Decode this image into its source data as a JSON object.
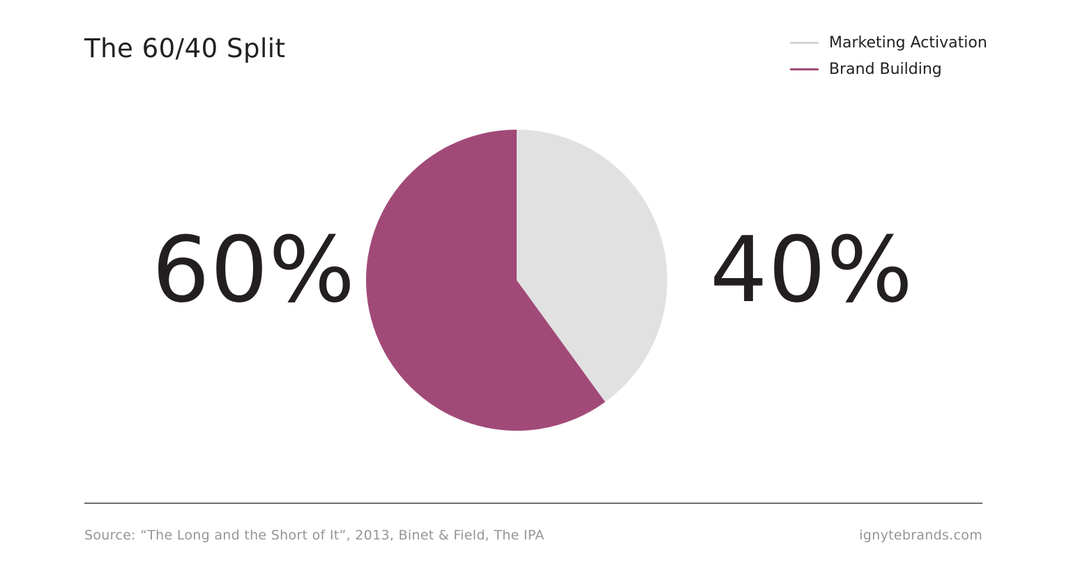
{
  "header": {
    "title": "The 60/40 Split"
  },
  "legend": {
    "items": [
      {
        "label": "Marketing Activation",
        "color": "#d1d3d4"
      },
      {
        "label": "Brand Building",
        "color": "#a14a78"
      }
    ]
  },
  "labels": {
    "left": "60%",
    "right": "40%"
  },
  "footer": {
    "source": "Source: “The Long and the Short of It”, 2013, Binet & Field, The IPA",
    "site": "ignytebrands.com"
  },
  "chart_data": {
    "type": "pie",
    "title": "The 60/40 Split",
    "categories": [
      "Marketing Activation",
      "Brand Building"
    ],
    "values": [
      40,
      60
    ],
    "colors": [
      "#e1e1e1",
      "#a14a78"
    ],
    "legend_position": "top-right",
    "start": "12 o'clock",
    "direction": "clockwise"
  }
}
